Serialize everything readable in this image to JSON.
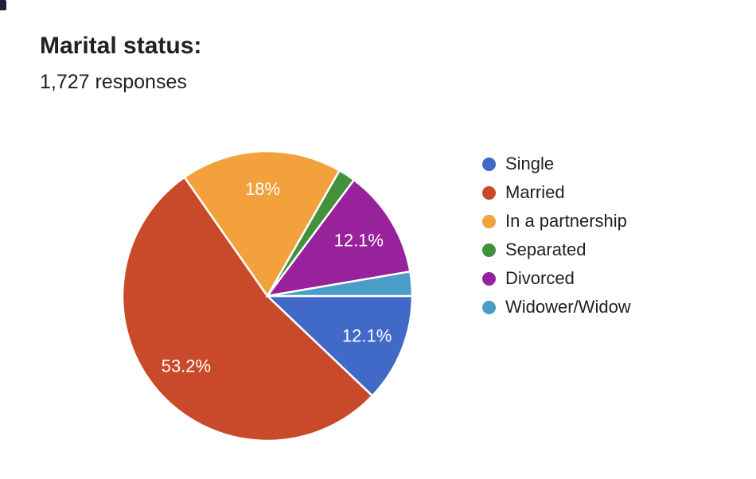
{
  "header": {
    "title": "Marital status:",
    "responses": "1,727 responses"
  },
  "chart_data": {
    "type": "pie",
    "title": "Marital status:",
    "subtitle": "1,727 responses",
    "total_responses": 1727,
    "categories": [
      "Single",
      "Married",
      "In a partnership",
      "Separated",
      "Divorced",
      "Widower/Widow"
    ],
    "values_percent": [
      12.1,
      53.2,
      18,
      1.9,
      12.1,
      2.7
    ],
    "slice_labels": [
      "12.1%",
      "53.2%",
      "18%",
      "",
      "12.1%",
      ""
    ],
    "colors": [
      "#4169C8",
      "#C94A2B",
      "#F2A13D",
      "#44913C",
      "#98219C",
      "#4A9DC6"
    ],
    "label_text_color": "#ffffff",
    "legend_position": "right",
    "start_angle_deg_clockwise_from_east": 0,
    "unlabeled_slices_estimated": [
      "Separated",
      "Widower/Widow"
    ]
  },
  "legend": {
    "items": [
      {
        "label": "Single",
        "color": "#4169C8"
      },
      {
        "label": "Married",
        "color": "#C94A2B"
      },
      {
        "label": "In a partnership",
        "color": "#F2A13D"
      },
      {
        "label": "Separated",
        "color": "#44913C"
      },
      {
        "label": "Divorced",
        "color": "#98219C"
      },
      {
        "label": "Widower/Widow",
        "color": "#4A9DC6"
      }
    ]
  }
}
